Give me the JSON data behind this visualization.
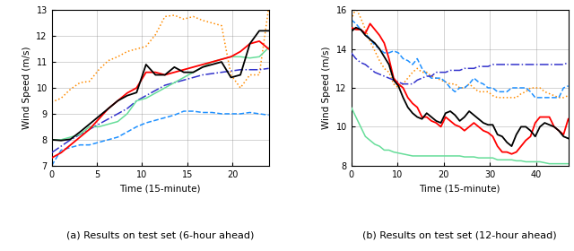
{
  "left": {
    "caption": "(a) Results on test set (6-hour ahead)",
    "xlabel": "Time (15-minute)",
    "ylabel": "Wind Speed (m/s)",
    "ylim": [
      7,
      13
    ],
    "xlim": [
      0,
      24
    ],
    "xticks": [
      0,
      5,
      10,
      15,
      20
    ],
    "yticks": [
      7,
      8,
      9,
      10,
      11,
      12,
      13
    ],
    "series": {
      "black_solid": [
        8.0,
        7.97,
        8.02,
        8.3,
        8.6,
        8.9,
        9.2,
        9.5,
        9.7,
        9.82,
        10.9,
        10.5,
        10.5,
        10.8,
        10.6,
        10.6,
        10.8,
        10.9,
        11.0,
        10.4,
        10.5,
        11.7,
        12.2,
        12.2
      ],
      "red_solid": [
        7.3,
        7.5,
        7.8,
        8.1,
        8.4,
        8.8,
        9.2,
        9.5,
        9.8,
        10.0,
        10.6,
        10.6,
        10.5,
        10.6,
        10.7,
        10.8,
        10.9,
        11.0,
        11.1,
        11.2,
        11.4,
        11.7,
        11.8,
        11.5
      ],
      "green_solid": [
        8.0,
        8.0,
        8.1,
        8.2,
        8.5,
        8.5,
        8.6,
        8.7,
        9.0,
        9.5,
        9.6,
        9.8,
        10.0,
        10.2,
        10.4,
        10.6,
        10.8,
        11.0,
        11.1,
        11.2,
        11.2,
        11.15,
        11.2,
        11.55
      ],
      "orange_dotted": [
        9.45,
        9.6,
        9.95,
        10.2,
        10.25,
        10.7,
        11.05,
        11.2,
        11.4,
        11.5,
        11.6,
        12.05,
        12.75,
        12.8,
        12.65,
        12.75,
        12.6,
        12.5,
        12.4,
        10.5,
        10.0,
        10.5,
        10.5,
        13.1
      ],
      "blue_dashed": [
        7.0,
        7.6,
        7.7,
        7.8,
        7.8,
        7.9,
        8.0,
        8.1,
        8.3,
        8.5,
        8.65,
        8.75,
        8.85,
        8.95,
        9.1,
        9.1,
        9.05,
        9.05,
        9.0,
        9.0,
        9.0,
        9.05,
        9.0,
        8.95
      ],
      "blue_dashdot": [
        7.5,
        7.75,
        8.0,
        8.2,
        8.4,
        8.6,
        8.8,
        9.0,
        9.2,
        9.5,
        9.7,
        9.9,
        10.1,
        10.2,
        10.3,
        10.4,
        10.5,
        10.55,
        10.6,
        10.65,
        10.7,
        10.7,
        10.7,
        10.75
      ]
    }
  },
  "right": {
    "caption": "(b) Results on test set (12-hour ahead)",
    "xlabel": "Time (15-minute)",
    "ylabel": "Wind Speed (m/s)",
    "ylim": [
      8,
      16
    ],
    "xlim": [
      0,
      47
    ],
    "xticks": [
      0,
      10,
      20,
      30,
      40
    ],
    "yticks": [
      8,
      10,
      12,
      14,
      16
    ],
    "series": {
      "black_solid": [
        14.9,
        15.1,
        15.0,
        14.7,
        14.5,
        14.3,
        14.0,
        13.6,
        13.2,
        12.4,
        12.1,
        11.5,
        11.0,
        10.7,
        10.5,
        10.4,
        10.7,
        10.5,
        10.3,
        10.2,
        10.7,
        10.8,
        10.6,
        10.3,
        10.5,
        10.8,
        10.6,
        10.4,
        10.2,
        10.1,
        10.1,
        9.6,
        9.5,
        9.2,
        9.0,
        9.6,
        10.0,
        10.0,
        9.8,
        9.5,
        10.0,
        10.2,
        10.1,
        10.0,
        9.8,
        9.5,
        9.4
      ],
      "red_solid": [
        15.1,
        15.0,
        15.0,
        14.8,
        15.3,
        15.0,
        14.7,
        14.3,
        13.5,
        12.5,
        12.2,
        12.0,
        11.5,
        11.2,
        11.0,
        10.5,
        10.5,
        10.3,
        10.2,
        10.0,
        10.5,
        10.3,
        10.1,
        10.0,
        9.8,
        10.0,
        10.2,
        10.0,
        9.8,
        9.7,
        9.5,
        9.0,
        8.7,
        8.7,
        8.6,
        8.7,
        9.0,
        9.3,
        9.5,
        10.2,
        10.5,
        10.5,
        10.5,
        10.0,
        9.8,
        9.6,
        10.4
      ],
      "green_solid": [
        11.0,
        10.5,
        10.0,
        9.5,
        9.3,
        9.1,
        9.0,
        8.8,
        8.8,
        8.7,
        8.65,
        8.6,
        8.55,
        8.5,
        8.5,
        8.5,
        8.5,
        8.5,
        8.5,
        8.5,
        8.5,
        8.5,
        8.5,
        8.5,
        8.45,
        8.45,
        8.45,
        8.4,
        8.4,
        8.4,
        8.4,
        8.3,
        8.3,
        8.3,
        8.3,
        8.25,
        8.25,
        8.2,
        8.2,
        8.2,
        8.2,
        8.15,
        8.1,
        8.1,
        8.1,
        8.1,
        8.1
      ],
      "orange_dotted": [
        15.5,
        16.1,
        15.6,
        15.0,
        14.4,
        13.9,
        13.4,
        13.0,
        12.8,
        12.2,
        12.0,
        12.2,
        12.5,
        12.8,
        13.0,
        12.8,
        12.8,
        12.6,
        12.5,
        12.4,
        12.3,
        12.2,
        12.2,
        12.0,
        12.0,
        12.2,
        12.0,
        11.8,
        11.8,
        11.8,
        11.6,
        11.5,
        11.5,
        11.5,
        11.5,
        11.5,
        11.7,
        11.8,
        12.0,
        12.0,
        12.0,
        11.8,
        11.7,
        11.6,
        11.5,
        11.5,
        11.6
      ],
      "blue_dashed": [
        15.5,
        15.3,
        15.0,
        14.8,
        14.5,
        14.2,
        14.0,
        13.8,
        13.8,
        13.9,
        13.8,
        13.5,
        13.4,
        13.2,
        13.5,
        13.0,
        12.7,
        12.5,
        12.5,
        12.5,
        12.3,
        12.0,
        11.8,
        12.0,
        12.0,
        12.2,
        12.5,
        12.3,
        12.2,
        12.0,
        12.0,
        11.8,
        11.8,
        11.8,
        12.0,
        12.0,
        12.0,
        12.0,
        11.8,
        11.5,
        11.5,
        11.5,
        11.5,
        11.5,
        11.5,
        12.0,
        12.1
      ],
      "blue_dashdot": [
        13.8,
        13.5,
        13.3,
        13.2,
        13.0,
        12.8,
        12.7,
        12.6,
        12.5,
        12.4,
        12.3,
        12.2,
        12.2,
        12.2,
        12.4,
        12.5,
        12.6,
        12.6,
        12.8,
        12.8,
        12.8,
        12.9,
        12.9,
        12.9,
        13.0,
        13.0,
        13.0,
        13.1,
        13.1,
        13.1,
        13.2,
        13.2,
        13.2,
        13.2,
        13.2,
        13.2,
        13.2,
        13.2,
        13.2,
        13.2,
        13.2,
        13.2,
        13.2,
        13.2,
        13.2,
        13.2,
        13.3
      ]
    }
  }
}
